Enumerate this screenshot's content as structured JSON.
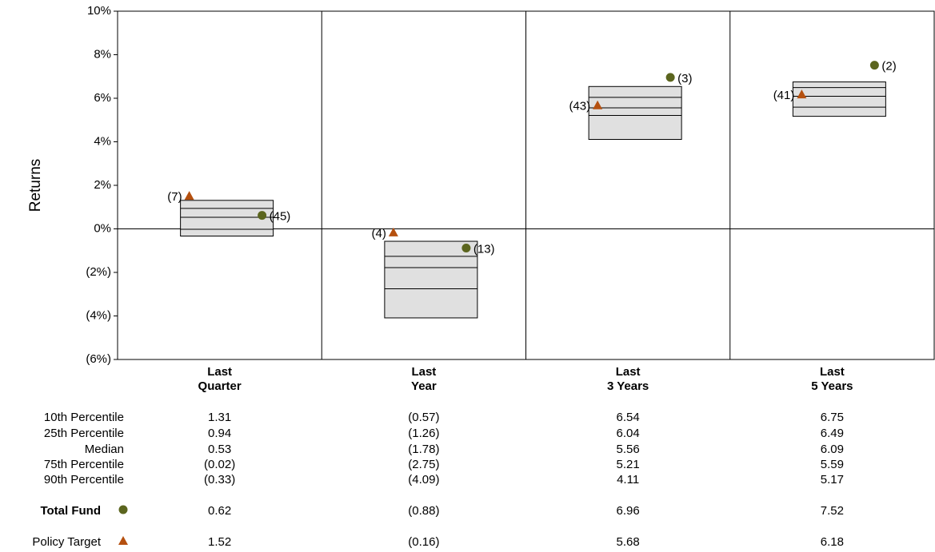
{
  "chart_data": {
    "type": "box",
    "y_label": "Returns",
    "categories": [
      "Last\nQuarter",
      "Last\nYear",
      "Last\n3 Years",
      "Last\n5 Years"
    ],
    "ylim": [
      -6,
      10
    ],
    "yticks": [
      {
        "value": -6,
        "label": "(6%)"
      },
      {
        "value": -4,
        "label": "(4%)"
      },
      {
        "value": -2,
        "label": "(2%)"
      },
      {
        "value": 0,
        "label": "0%"
      },
      {
        "value": 2,
        "label": "2%"
      },
      {
        "value": 4,
        "label": "4%"
      },
      {
        "value": 6,
        "label": "6%"
      },
      {
        "value": 8,
        "label": "8%"
      },
      {
        "value": 10,
        "label": "10%"
      }
    ],
    "box_color": "#e0e0e0",
    "negative_color": "#ff0000",
    "percentiles": [
      {
        "name": "10th Percentile",
        "values": [
          1.31,
          -0.57,
          6.54,
          6.75
        ],
        "value_labels": [
          "1.31",
          "(0.57)",
          "6.54",
          "6.75"
        ]
      },
      {
        "name": "25th Percentile",
        "values": [
          0.94,
          -1.26,
          6.04,
          6.49
        ],
        "value_labels": [
          "0.94",
          "(1.26)",
          "6.04",
          "6.49"
        ]
      },
      {
        "name": "Median",
        "values": [
          0.53,
          -1.78,
          5.56,
          6.09
        ],
        "value_labels": [
          "0.53",
          "(1.78)",
          "5.56",
          "6.09"
        ]
      },
      {
        "name": "75th Percentile",
        "values": [
          -0.02,
          -2.75,
          5.21,
          5.59
        ],
        "value_labels": [
          "(0.02)",
          "(2.75)",
          "5.21",
          "5.59"
        ]
      },
      {
        "name": "90th Percentile",
        "values": [
          -0.33,
          -4.09,
          4.11,
          5.17
        ],
        "value_labels": [
          "(0.33)",
          "(4.09)",
          "4.11",
          "5.17"
        ]
      }
    ],
    "series": [
      {
        "name": "Total Fund",
        "marker": "circle",
        "color": "#5b651e",
        "values": [
          0.62,
          -0.88,
          6.96,
          7.52
        ],
        "value_labels": [
          "0.62",
          "(0.88)",
          "6.96",
          "7.52"
        ],
        "rank_labels": [
          "(45)",
          "(13)",
          "(3)",
          "(2)"
        ]
      },
      {
        "name": "Policy Target",
        "marker": "triangle",
        "color": "#b5500f",
        "values": [
          1.52,
          -0.16,
          5.68,
          6.18
        ],
        "value_labels": [
          "1.52",
          "(0.16)",
          "5.68",
          "6.18"
        ],
        "rank_labels": [
          "(7)",
          "(4)",
          "(43)",
          "(41)"
        ]
      }
    ]
  }
}
